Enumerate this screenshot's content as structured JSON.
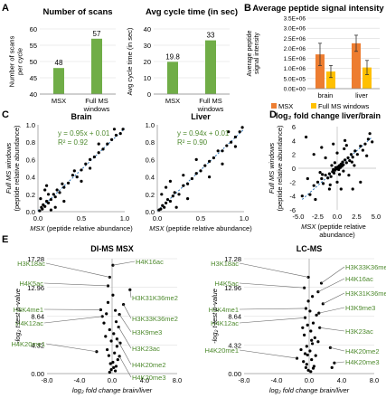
{
  "chart_data": [
    {
      "panel": "A",
      "type": "bar",
      "title": "Number of scans",
      "ylabel": "Number of scans per cycle",
      "categories": [
        "MSX",
        "Full MS windows"
      ],
      "values": [
        48,
        57
      ],
      "ylim": [
        40,
        60
      ],
      "yticks": [
        40,
        45,
        50,
        55,
        60
      ],
      "color": "#70ad47"
    },
    {
      "panel": "A",
      "type": "bar",
      "title": "Avg cycle time (in sec)",
      "ylabel": "Avg cycle time (in sec)",
      "categories": [
        "MSX",
        "Full MS windows"
      ],
      "values": [
        19.8,
        33
      ],
      "ylim": [
        0,
        40
      ],
      "yticks": [
        0,
        10,
        20,
        30,
        40
      ],
      "color": "#70ad47"
    },
    {
      "panel": "B",
      "type": "bar",
      "title": "Average peptide signal intensity",
      "ylabel": "Average peptide signal intensity",
      "categories": [
        "brain",
        "liver"
      ],
      "series": [
        {
          "name": "MSX",
          "values": [
            1700000,
            2250000
          ],
          "err": [
            550000,
            400000
          ],
          "color": "#ed7d31"
        },
        {
          "name": "Full MS windows",
          "values": [
            850000,
            1050000
          ],
          "err": [
            300000,
            350000
          ],
          "color": "#ffc000"
        }
      ],
      "ylim": [
        0,
        3500000
      ],
      "yticks": [
        "0.0E+00",
        "5.0E+05",
        "1.0E+06",
        "1.5E+06",
        "2.0E+06",
        "2.5E+06",
        "3.0E+06",
        "3.5E+06"
      ]
    },
    {
      "panel": "C",
      "type": "scatter",
      "title": "Brain",
      "equation": "y = 0.95x + 0.01",
      "r2": "R² = 0.92",
      "xlabel_italic": "MSX",
      "xlabel_rest": "(peptide relative abundance)",
      "ylabel_italic": "Full MS windows",
      "ylabel_rest": "(peptide relative abundance)",
      "xticks": [
        "0.0",
        "0.5",
        "1.0"
      ],
      "yticks": [
        "0.0",
        "0.2",
        "0.4",
        "0.6",
        "0.8",
        "1.0"
      ],
      "fit": [
        0.95,
        0.01
      ],
      "points": [
        [
          0.02,
          0.01
        ],
        [
          0.04,
          0.05
        ],
        [
          0.05,
          0.03
        ],
        [
          0.06,
          0.08
        ],
        [
          0.08,
          0.06
        ],
        [
          0.1,
          0.12
        ],
        [
          0.12,
          0.1
        ],
        [
          0.15,
          0.14
        ],
        [
          0.18,
          0.2
        ],
        [
          0.2,
          0.17
        ],
        [
          0.22,
          0.25
        ],
        [
          0.25,
          0.22
        ],
        [
          0.3,
          0.28
        ],
        [
          0.35,
          0.33
        ],
        [
          0.4,
          0.42
        ],
        [
          0.45,
          0.4
        ],
        [
          0.5,
          0.48
        ],
        [
          0.55,
          0.55
        ],
        [
          0.6,
          0.6
        ],
        [
          0.65,
          0.63
        ],
        [
          0.7,
          0.68
        ],
        [
          0.75,
          0.72
        ],
        [
          0.8,
          0.78
        ],
        [
          0.85,
          0.83
        ],
        [
          0.9,
          0.88
        ],
        [
          0.95,
          0.9
        ],
        [
          0.98,
          0.95
        ],
        [
          0.1,
          0.3
        ],
        [
          0.08,
          0.25
        ],
        [
          0.2,
          0.05
        ],
        [
          0.3,
          0.12
        ],
        [
          0.03,
          0.15
        ],
        [
          0.5,
          0.35
        ],
        [
          0.6,
          0.5
        ],
        [
          0.15,
          0.02
        ],
        [
          0.12,
          0.2
        ],
        [
          0.28,
          0.32
        ],
        [
          0.42,
          0.47
        ],
        [
          0.7,
          0.78
        ],
        [
          0.88,
          0.95
        ]
      ]
    },
    {
      "panel": "C",
      "type": "scatter",
      "title": "Liver",
      "equation": "y = 0.94x + 0.01",
      "r2": "R² = 0.90",
      "xlabel_italic": "MSX",
      "xlabel_rest": "(peptide relative abundance)",
      "xticks": [
        "0.0",
        "0.5",
        "1.0"
      ],
      "yticks": [
        "0.0",
        "0.2",
        "0.4",
        "0.6",
        "0.8",
        "1.0"
      ],
      "fit": [
        0.94,
        0.01
      ],
      "points": [
        [
          0.02,
          0.02
        ],
        [
          0.04,
          0.03
        ],
        [
          0.06,
          0.07
        ],
        [
          0.08,
          0.05
        ],
        [
          0.1,
          0.1
        ],
        [
          0.12,
          0.14
        ],
        [
          0.15,
          0.12
        ],
        [
          0.18,
          0.18
        ],
        [
          0.2,
          0.22
        ],
        [
          0.25,
          0.2
        ],
        [
          0.3,
          0.3
        ],
        [
          0.35,
          0.32
        ],
        [
          0.4,
          0.38
        ],
        [
          0.45,
          0.44
        ],
        [
          0.5,
          0.47
        ],
        [
          0.55,
          0.53
        ],
        [
          0.6,
          0.58
        ],
        [
          0.65,
          0.62
        ],
        [
          0.7,
          0.7
        ],
        [
          0.75,
          0.7
        ],
        [
          0.8,
          0.76
        ],
        [
          0.85,
          0.8
        ],
        [
          0.9,
          0.86
        ],
        [
          0.95,
          0.92
        ],
        [
          0.98,
          0.97
        ],
        [
          0.1,
          0.28
        ],
        [
          0.05,
          0.2
        ],
        [
          0.22,
          0.05
        ],
        [
          0.35,
          0.15
        ],
        [
          0.6,
          0.4
        ],
        [
          0.75,
          0.55
        ],
        [
          0.15,
          0.35
        ],
        [
          0.3,
          0.42
        ],
        [
          0.45,
          0.6
        ],
        [
          0.82,
          0.92
        ],
        [
          0.9,
          0.75
        ]
      ]
    },
    {
      "panel": "D",
      "type": "scatter",
      "title": "log₂ fold change liver/brain",
      "xlabel_italic": "MSX",
      "xlabel_rest": "(peptide relative abundance)",
      "ylabel_italic": "Full MS windows",
      "ylabel_rest": "(peptide relative abundance)",
      "xticks": [
        "-5.0",
        "-2.5",
        "0.0",
        "2.5",
        "5.0"
      ],
      "yticks": [
        "-6",
        "-4",
        "-2",
        "0",
        "2",
        "4",
        "6"
      ],
      "points": [
        [
          -4.5,
          -4
        ],
        [
          -3.5,
          -3.8
        ],
        [
          -3,
          -2.5
        ],
        [
          -2.5,
          -2
        ],
        [
          -2,
          -1.5
        ],
        [
          -1.8,
          -2.2
        ],
        [
          -1.5,
          -1
        ],
        [
          -1.2,
          -1.4
        ],
        [
          -1,
          -0.8
        ],
        [
          -0.8,
          -1.2
        ],
        [
          -0.6,
          -0.5
        ],
        [
          -0.5,
          -0.2
        ],
        [
          -0.4,
          -0.7
        ],
        [
          -0.3,
          -0.3
        ],
        [
          -0.2,
          0.1
        ],
        [
          -0.1,
          -0.1
        ],
        [
          0,
          0
        ],
        [
          0.1,
          0.2
        ],
        [
          0.2,
          -0.2
        ],
        [
          0.3,
          0.4
        ],
        [
          0.4,
          0.1
        ],
        [
          0.5,
          0.6
        ],
        [
          0.6,
          0.3
        ],
        [
          0.7,
          0.9
        ],
        [
          0.8,
          0.5
        ],
        [
          1,
          1.2
        ],
        [
          1.2,
          0.8
        ],
        [
          1.4,
          1.5
        ],
        [
          1.6,
          1.1
        ],
        [
          1.8,
          2
        ],
        [
          2,
          1.6
        ],
        [
          2.3,
          2.5
        ],
        [
          2.6,
          2
        ],
        [
          3,
          3.2
        ],
        [
          3.3,
          2.6
        ],
        [
          3.6,
          3.5
        ],
        [
          4,
          4.2
        ],
        [
          4.5,
          3.8
        ],
        [
          -3,
          2
        ],
        [
          -2,
          3
        ],
        [
          2,
          -3
        ],
        [
          3,
          -2
        ],
        [
          -4,
          4.5
        ],
        [
          0.5,
          -3
        ],
        [
          -0.5,
          3.5
        ],
        [
          1.5,
          -1
        ],
        [
          -1.5,
          1.5
        ],
        [
          4.2,
          5
        ],
        [
          -2.8,
          -4.5
        ],
        [
          0,
          2.2
        ],
        [
          0,
          -2
        ],
        [
          1,
          4
        ],
        [
          -1,
          -3
        ],
        [
          2.2,
          0.4
        ],
        [
          -2.2,
          -0.6
        ],
        [
          0.9,
          2.8
        ],
        [
          -0.9,
          -2.4
        ],
        [
          3.8,
          1.8
        ],
        [
          -3.8,
          -1.5
        ],
        [
          1.2,
          3.3
        ],
        [
          0.3,
          -0.9
        ],
        [
          -0.3,
          0.8
        ],
        [
          0.8,
          -0.4
        ],
        [
          -0.7,
          0.4
        ],
        [
          1.9,
          0.9
        ],
        [
          -1.9,
          -0.9
        ]
      ]
    },
    {
      "panel": "E",
      "type": "scatter",
      "title": "DI-MS MSX",
      "xlabel": "log₂ fold change brain/liver",
      "ylabel": "-log₂ t-test p-value",
      "xticks": [
        "-8.0",
        "-4.0",
        "0.0",
        "4.0",
        "8.0"
      ],
      "yticks": [
        "0.00",
        "4.32",
        "8.64",
        "12.96",
        "17.28"
      ],
      "labels": [
        "H3K18ac",
        "H4K16ac",
        "H4K5ac",
        "H3K4me1",
        "H4K12ac",
        "H4K20me1",
        "H3K31K36me2",
        "H3K33K36me2",
        "H3K9me3",
        "H3K23ac",
        "H4K20me2",
        "H4K20me3"
      ],
      "points": [
        [
          -0.3,
          14.5
        ],
        [
          0.1,
          16.3
        ],
        [
          -0.5,
          13.2
        ],
        [
          -1.4,
          9.6
        ],
        [
          -1.2,
          8.6
        ],
        [
          -1.9,
          3.3
        ],
        [
          2.2,
          12.6
        ],
        [
          1.4,
          10.4
        ],
        [
          0.9,
          8.9
        ],
        [
          0.8,
          7
        ],
        [
          0.6,
          5.2
        ],
        [
          0.9,
          2.6
        ],
        [
          0.1,
          1.7
        ],
        [
          0.2,
          0.9
        ],
        [
          -0.1,
          0.6
        ],
        [
          0.4,
          0.4
        ],
        [
          -0.3,
          0.2
        ],
        [
          0.5,
          1.1
        ],
        [
          -0.2,
          1.5
        ],
        [
          0.7,
          2.1
        ],
        [
          -0.4,
          2.7
        ],
        [
          0.3,
          3.1
        ],
        [
          -0.6,
          3.6
        ],
        [
          0.6,
          4.1
        ],
        [
          -0.1,
          4.9
        ],
        [
          0.2,
          6
        ],
        [
          -0.3,
          6.6
        ],
        [
          0.5,
          7.8
        ],
        [
          -0.8,
          5.6
        ],
        [
          0.4,
          9.5
        ],
        [
          -0.5,
          10.7
        ],
        [
          0.1,
          11.8
        ],
        [
          -1,
          7.6
        ],
        [
          1,
          4.6
        ],
        [
          -0.7,
          9
        ]
      ]
    },
    {
      "panel": "E",
      "type": "scatter",
      "title": "LC-MS",
      "xlabel": "log₂ fold change brain/liver",
      "ylabel": "-log₂ t-test p-value",
      "xticks": [
        "-8.0",
        "-4.0",
        "0.0",
        "4.0",
        "8.0"
      ],
      "yticks": [
        "0.00",
        "4.32",
        "8.64",
        "12.96",
        "17.28"
      ],
      "labels": [
        "H3K18ac",
        "H3K33K36me2",
        "H4K16ac",
        "H4K5ac",
        "H3K31K36me2",
        "H3K4me1",
        "H3K9me3",
        "H4K12ac",
        "H3K23ac",
        "H4K20me2",
        "H4K20me1",
        "H4K20me3"
      ],
      "points": [
        [
          -0.1,
          14.5
        ],
        [
          1.5,
          13.6
        ],
        [
          1.1,
          12.3
        ],
        [
          -0.6,
          12.9
        ],
        [
          1.7,
          10.5
        ],
        [
          -0.4,
          9.8
        ],
        [
          1.2,
          9.1
        ],
        [
          -0.5,
          8.4
        ],
        [
          1.3,
          6.9
        ],
        [
          2.6,
          3.9
        ],
        [
          -1.5,
          2.3
        ],
        [
          3.1,
          1.6
        ],
        [
          0.1,
          3.4
        ],
        [
          -0.2,
          2.8
        ],
        [
          0.3,
          2.1
        ],
        [
          -0.3,
          1.4
        ],
        [
          0.5,
          0.8
        ],
        [
          -0.1,
          0.5
        ],
        [
          0.2,
          0.3
        ],
        [
          0.6,
          1.1
        ],
        [
          -0.7,
          1.8
        ],
        [
          0.4,
          4.5
        ],
        [
          -0.3,
          4.1
        ],
        [
          0.7,
          5.4
        ],
        [
          -0.6,
          5.8
        ],
        [
          0.2,
          6.4
        ],
        [
          -0.2,
          7.3
        ],
        [
          0.5,
          7.6
        ],
        [
          -0.8,
          6.9
        ],
        [
          0.9,
          8.8
        ],
        [
          -0.1,
          10.9
        ],
        [
          0.4,
          11.6
        ],
        [
          0.8,
          2.7
        ],
        [
          -1,
          3.6
        ],
        [
          1.1,
          4.8
        ],
        [
          0.1,
          9.4
        ],
        [
          2.8,
          0.9
        ],
        [
          -0.4,
          0.9
        ],
        [
          0.3,
          5
        ],
        [
          -0.5,
          3
        ]
      ]
    }
  ],
  "panel_letters": [
    "A",
    "B",
    "C",
    "D",
    "E"
  ],
  "bar_value_labels": [
    [
      "48",
      "57"
    ],
    [
      "19.8",
      "33"
    ]
  ],
  "b_legend": [
    "MSX",
    "Full MS windows"
  ]
}
